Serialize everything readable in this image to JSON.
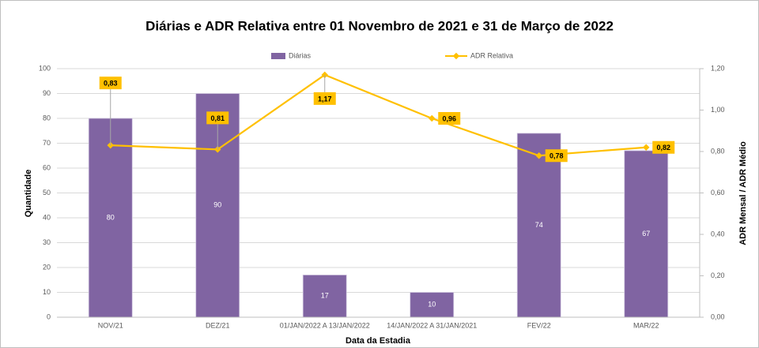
{
  "chart_data": {
    "type": "bar",
    "title": "Diárias e ADR Relativa entre 01 Novembro de 2021 e 31 de Março de 2022",
    "x_label": "Data da Estadia",
    "y_label": "Quantidade",
    "y2_label": "ADR Mensal / ADR Médio",
    "categories": [
      "NOV/21",
      "DEZ/21",
      "01/JAN/2022 A 13/JAN/2022",
      "14/JAN/2022 A 31/JAN/2021",
      "FEV/22",
      "MAR/22"
    ],
    "series": [
      {
        "name": "Diárias",
        "type": "bar",
        "color": "#8064a2",
        "values": [
          80,
          90,
          17,
          10,
          74,
          67
        ]
      },
      {
        "name": "ADR Relativa",
        "type": "line",
        "axis": "y2",
        "color": "#ffc000",
        "values": [
          0.83,
          0.81,
          1.17,
          0.96,
          0.78,
          0.82
        ],
        "value_labels": [
          "0,83",
          "0,81",
          "1,17",
          "0,96",
          "0,78",
          "0,82"
        ]
      }
    ],
    "ylim": [
      0,
      100
    ],
    "yticks": [
      0,
      10,
      20,
      30,
      40,
      50,
      60,
      70,
      80,
      90,
      100
    ],
    "y2lim": [
      0,
      1.2
    ],
    "y2ticks": [
      {
        "value": 0,
        "label": "0,00"
      },
      {
        "value": 0.2,
        "label": "0,20"
      },
      {
        "value": 0.4,
        "label": "0,40"
      },
      {
        "value": 0.6,
        "label": "0,60"
      },
      {
        "value": 0.8,
        "label": "0,80"
      },
      {
        "value": 1.0,
        "label": "1,00"
      },
      {
        "value": 1.2,
        "label": "1,20"
      }
    ],
    "grid": true,
    "legend": "top"
  }
}
